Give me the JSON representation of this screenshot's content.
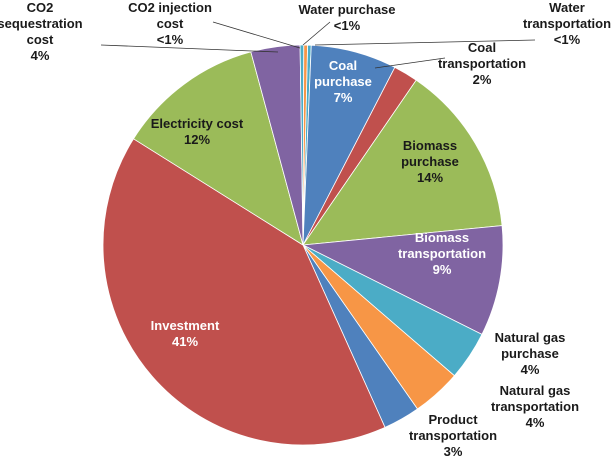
{
  "chart_data": {
    "type": "pie",
    "title": "",
    "unit": "%",
    "slices": [
      {
        "name": "Water purchase",
        "lines": [
          "Water purchase",
          "<1%"
        ],
        "value": 0.3,
        "color": "#4bacc6"
      },
      {
        "name": "Coal purchase",
        "lines": [
          "Coal",
          "purchase",
          "7%"
        ],
        "value": 7,
        "color": "#4f81bd"
      },
      {
        "name": "Coal transportation",
        "lines": [
          "Coal",
          "transportation",
          "2%"
        ],
        "value": 2,
        "color": "#c0504d"
      },
      {
        "name": "Biomass purchase",
        "lines": [
          "Biomass",
          "purchase",
          "14%"
        ],
        "value": 14,
        "color": "#9bbb59"
      },
      {
        "name": "Biomass transportation",
        "lines": [
          "Biomass",
          "transportation",
          "9%"
        ],
        "value": 9,
        "color": "#8064a2"
      },
      {
        "name": "Natural gas purchase",
        "lines": [
          "Natural gas",
          "purchase",
          "4%"
        ],
        "value": 4,
        "color": "#4bacc6"
      },
      {
        "name": "Natural gas transportation",
        "lines": [
          "Natural gas",
          "transportation",
          "4%"
        ],
        "value": 4,
        "color": "#f79646"
      },
      {
        "name": "Product transportation",
        "lines": [
          "Product",
          "transportation",
          "3%"
        ],
        "value": 3,
        "color": "#4f81bd"
      },
      {
        "name": "Investment",
        "lines": [
          "Investment",
          "41%"
        ],
        "value": 41,
        "color": "#c0504d"
      },
      {
        "name": "Electricity cost",
        "lines": [
          "Electricity cost",
          "12%"
        ],
        "value": 12,
        "color": "#9bbb59"
      },
      {
        "name": "CO2 sequestration cost",
        "lines": [
          "CO2",
          "sequestration",
          "cost",
          "4%"
        ],
        "value": 4,
        "color": "#8064a2"
      },
      {
        "name": "CO2 injection cost",
        "lines": [
          "CO2 injection",
          "cost",
          "<1%"
        ],
        "value": 0.3,
        "color": "#4bacc6"
      },
      {
        "name": "Water transportation",
        "lines": [
          "Water",
          "transportation",
          "<1%"
        ],
        "value": 0.3,
        "color": "#f79646"
      }
    ]
  }
}
